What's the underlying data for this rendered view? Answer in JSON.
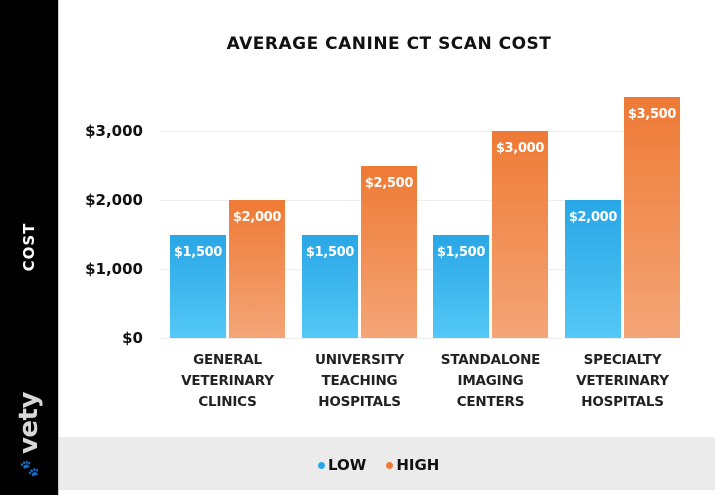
{
  "sidebar": {
    "axis_label": "COST",
    "logo_text": "vety",
    "logo_icon": "paw-icon"
  },
  "colors": {
    "low": "#29a6e6",
    "high": "#ee7a35",
    "sidebar_bg": "#000000",
    "legend_bg": "#ebebeb"
  },
  "chart_data": {
    "type": "bar",
    "title": "AVERAGE CANINE CT SCAN COST",
    "xlabel": "",
    "ylabel": "COST",
    "ylim": [
      0,
      3500
    ],
    "yticks": [
      "$0",
      "$1,000",
      "$2,000",
      "$3,000"
    ],
    "ytick_values": [
      0,
      1000,
      2000,
      3000
    ],
    "grid": true,
    "legend_position": "bottom",
    "categories": [
      [
        "GENERAL",
        "VETERINARY",
        "CLINICS"
      ],
      [
        "UNIVERSITY",
        "TEACHING",
        "HOSPITALS"
      ],
      [
        "STANDALONE",
        "IMAGING",
        "CENTERS"
      ],
      [
        "SPECIALTY",
        "VETERINARY",
        "HOSPITALS"
      ]
    ],
    "series": [
      {
        "name": "LOW",
        "values": [
          1500,
          1500,
          1500,
          2000
        ],
        "labels": [
          "$1,500",
          "$1,500",
          "$1,500",
          "$2,000"
        ]
      },
      {
        "name": "HIGH",
        "values": [
          2000,
          2500,
          3000,
          3500
        ],
        "labels": [
          "$2,000",
          "$2,500",
          "$3,000",
          "$3,500"
        ]
      }
    ]
  },
  "legend": {
    "items": [
      {
        "label": "LOW"
      },
      {
        "label": "HIGH"
      }
    ]
  }
}
